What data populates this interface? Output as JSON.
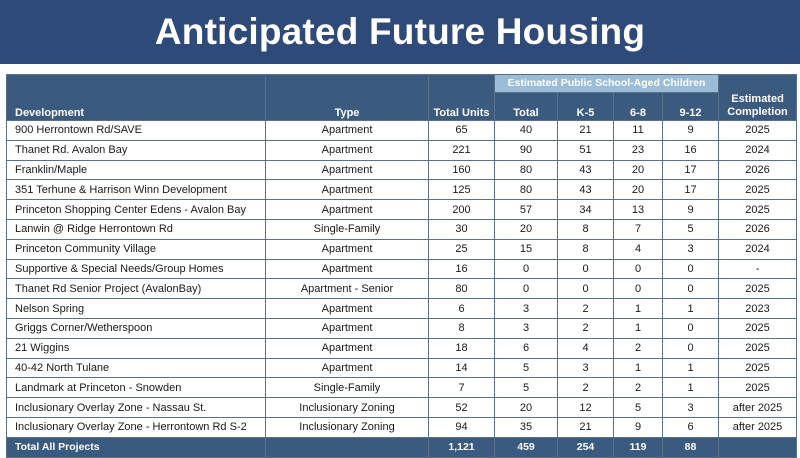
{
  "title": "Anticipated Future Housing",
  "headers": {
    "development": "Development",
    "type": "Type",
    "total_units": "Total Units",
    "group": "Estimated Public School-Aged Children",
    "total": "Total",
    "k5": "K-5",
    "g68": "6-8",
    "g912": "9-12",
    "completion_line1": "Estimated",
    "completion_line2": "Completion"
  },
  "rows": [
    {
      "development": "900 Herrontown Rd/SAVE",
      "type": "Apartment",
      "units": "65",
      "total": "40",
      "k5": "21",
      "g68": "11",
      "g912": "9",
      "completion": "2025"
    },
    {
      "development": "Thanet Rd. Avalon Bay",
      "type": "Apartment",
      "units": "221",
      "total": "90",
      "k5": "51",
      "g68": "23",
      "g912": "16",
      "completion": "2024"
    },
    {
      "development": "Franklin/Maple",
      "type": "Apartment",
      "units": "160",
      "total": "80",
      "k5": "43",
      "g68": "20",
      "g912": "17",
      "completion": "2026"
    },
    {
      "development": "351 Terhune & Harrison Winn Development",
      "type": "Apartment",
      "units": "125",
      "total": "80",
      "k5": "43",
      "g68": "20",
      "g912": "17",
      "completion": "2025"
    },
    {
      "development": "Princeton Shopping Center Edens - Avalon Bay",
      "type": "Apartment",
      "units": "200",
      "total": "57",
      "k5": "34",
      "g68": "13",
      "g912": "9",
      "completion": "2025"
    },
    {
      "development": "Lanwin @ Ridge Herrontown Rd",
      "type": "Single-Family",
      "units": "30",
      "total": "20",
      "k5": "8",
      "g68": "7",
      "g912": "5",
      "completion": "2026"
    },
    {
      "development": "Princeton Community Village",
      "type": "Apartment",
      "units": "25",
      "total": "15",
      "k5": "8",
      "g68": "4",
      "g912": "3",
      "completion": "2024"
    },
    {
      "development": "Supportive & Special Needs/Group Homes",
      "type": "Apartment",
      "units": "16",
      "total": "0",
      "k5": "0",
      "g68": "0",
      "g912": "0",
      "completion": "-"
    },
    {
      "development": "Thanet Rd Senior Project (AvalonBay)",
      "type": "Apartment - Senior",
      "units": "80",
      "total": "0",
      "k5": "0",
      "g68": "0",
      "g912": "0",
      "completion": "2025"
    },
    {
      "development": "Nelson Spring",
      "type": "Apartment",
      "units": "6",
      "total": "3",
      "k5": "2",
      "g68": "1",
      "g912": "1",
      "completion": "2023"
    },
    {
      "development": "Griggs Corner/Wetherspoon",
      "type": "Apartment",
      "units": "8",
      "total": "3",
      "k5": "2",
      "g68": "1",
      "g912": "0",
      "completion": "2025"
    },
    {
      "development": "21 Wiggins",
      "type": "Apartment",
      "units": "18",
      "total": "6",
      "k5": "4",
      "g68": "2",
      "g912": "0",
      "completion": "2025"
    },
    {
      "development": "40-42 North Tulane",
      "type": "Apartment",
      "units": "14",
      "total": "5",
      "k5": "3",
      "g68": "1",
      "g912": "1",
      "completion": "2025"
    },
    {
      "development": "Landmark at Princeton - Snowden",
      "type": "Single-Family",
      "units": "7",
      "total": "5",
      "k5": "2",
      "g68": "2",
      "g912": "1",
      "completion": "2025"
    },
    {
      "development": "Inclusionary Overlay Zone - Nassau St.",
      "type": "Inclusionary Zoning",
      "units": "52",
      "total": "20",
      "k5": "12",
      "g68": "5",
      "g912": "3",
      "completion": "after 2025"
    },
    {
      "development": "Inclusionary Overlay Zone - Herrontown Rd S-2",
      "type": "Inclusionary Zoning",
      "units": "94",
      "total": "35",
      "k5": "21",
      "g68": "9",
      "g912": "6",
      "completion": "after 2025"
    }
  ],
  "totals": {
    "label": "Total All Projects",
    "units": "1,121",
    "total": "459",
    "k5": "254",
    "g68": "119",
    "g912": "88",
    "completion": ""
  },
  "colors": {
    "title_bg": "#2e4a78",
    "header_bg": "#3b5a80",
    "group_header_bg": "#9bbcd6"
  }
}
